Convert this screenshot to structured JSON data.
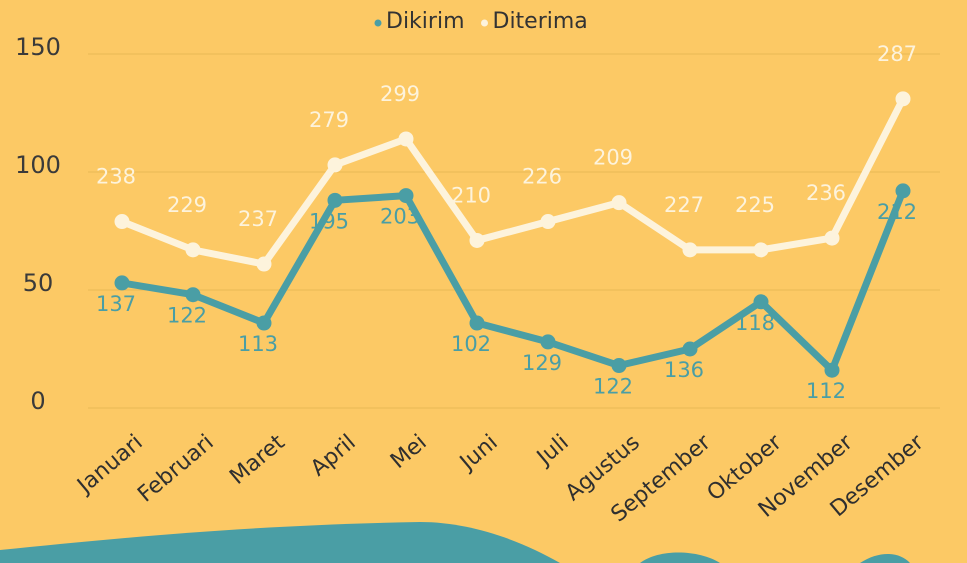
{
  "chart_data": {
    "type": "line",
    "categories": [
      "Januari",
      "Februari",
      "Maret",
      "April",
      "Mei",
      "Juni",
      "Juli",
      "Agustus",
      "September",
      "Oktober",
      "November",
      "Desember"
    ],
    "series": [
      {
        "name": "Dikirim",
        "color": "#4a9ea5",
        "values": [
          53,
          48,
          36,
          88,
          90,
          36,
          28,
          18,
          25,
          45,
          16,
          92
        ],
        "labels": [
          "137",
          "122",
          "113",
          "195",
          "203",
          "102",
          "129",
          "122",
          "136",
          "118",
          "112",
          "212"
        ]
      },
      {
        "name": "Diterima",
        "color": "#fdf3dc",
        "values": [
          79,
          67,
          61,
          103,
          114,
          71,
          79,
          87,
          67,
          67,
          72,
          131
        ],
        "labels": [
          "238",
          "229",
          "237",
          "279",
          "299",
          "210",
          "226",
          "209",
          "227",
          "225",
          "236",
          "287"
        ]
      }
    ],
    "ylim": [
      0,
      150
    ],
    "yticks": [
      0,
      50,
      100,
      150
    ],
    "grid": true
  }
}
